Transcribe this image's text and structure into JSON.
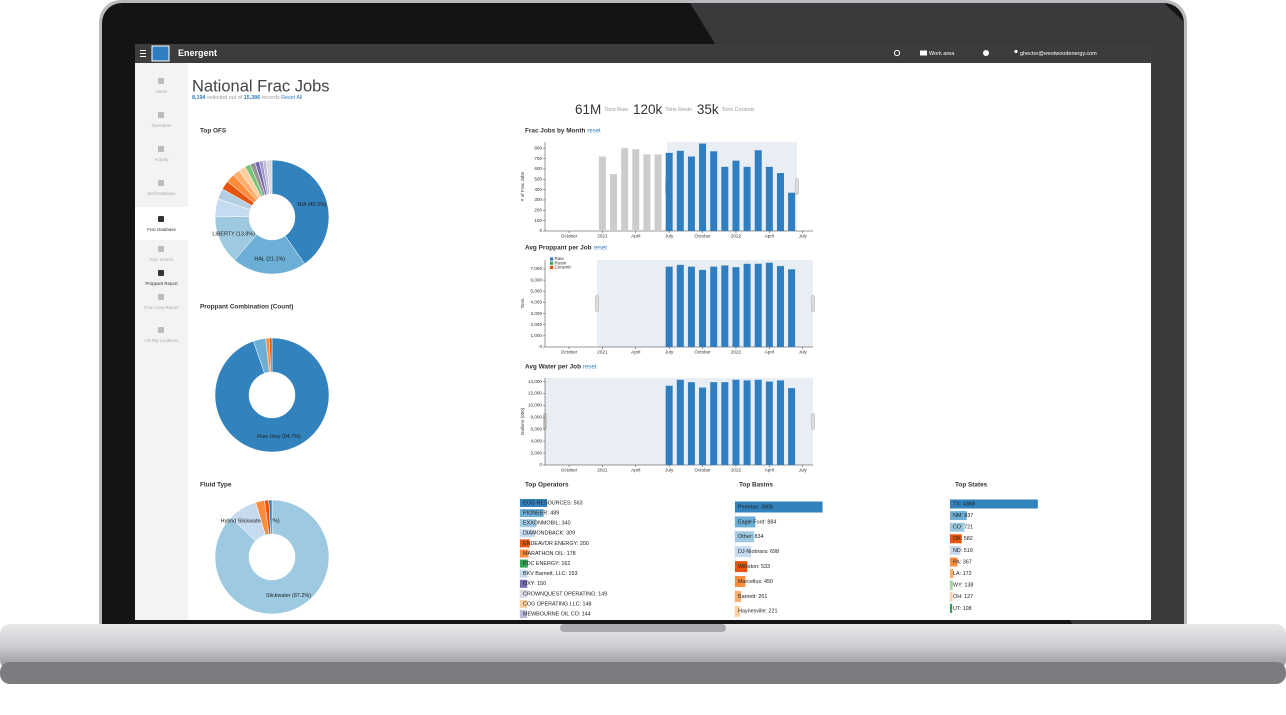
{
  "top_bar": {
    "brand": "Energent",
    "work_area": "Work area",
    "user": "ghector@westwoodenergy.com"
  },
  "nav": [
    "Home",
    "Operators",
    "Activity",
    "Well Database",
    "Frac Database",
    "Frac Search",
    "Proppant Report",
    "Frac Crew Report",
    "US Rig Locations"
  ],
  "header": {
    "title": "National Frac Jobs",
    "selected": "8,194",
    "selected_text": "selected out of",
    "total": "15,386",
    "records_text": "records",
    "reset_all": "Reset All"
  },
  "kpis": [
    {
      "value": "61M",
      "label": "Tons Raw"
    },
    {
      "value": "120k",
      "label": "Tons Resin"
    },
    {
      "value": "35k",
      "label": "Tons Ceramic"
    }
  ],
  "charts": [
    {
      "type": "pie",
      "title": "Top OFS",
      "values": [
        40.3,
        21.1,
        13.8,
        5,
        3,
        2.5,
        2.5,
        2,
        2,
        1.5,
        1.5,
        1.2,
        1,
        1,
        1.6
      ],
      "colors": [
        "#3182bd",
        "#6baed6",
        "#9ecae1",
        "#c6dbef",
        "#b3cde3",
        "#e6550d",
        "#fd8d3c",
        "#fdae6b",
        "#fdd0a2",
        "#74c476",
        "#969696",
        "#756bb1",
        "#9e9ac8",
        "#bcbddc",
        "#d9d9d9"
      ],
      "value_labels": [
        "N/A (40.3%)",
        "HAL (21.1%)",
        "LIBERTY (13.8%)",
        null,
        null,
        null,
        null,
        null,
        null,
        null,
        null,
        null,
        null,
        null,
        null
      ]
    },
    {
      "type": "pie",
      "title": "Proppant Combination (Count)",
      "values": [
        94.7,
        3.5,
        1.0,
        0.8
      ],
      "colors": [
        "#3182bd",
        "#6baed6",
        "#fd8d3c",
        "#e6550d"
      ],
      "value_labels": [
        "Raw Only (94.7%)",
        null,
        null,
        null
      ]
    },
    {
      "type": "pie",
      "title": "Fluid Type",
      "values": [
        87.2,
        8.2,
        2.5,
        1.2,
        0.9
      ],
      "colors": [
        "#9ecae1",
        "#c6dbef",
        "#fd8d3c",
        "#e6550d",
        "#3182bd"
      ],
      "value_labels": [
        "Slickwater (87.2%)",
        "Hybrid Slickwater (8.2%)",
        null,
        null,
        null
      ]
    },
    {
      "type": "bar",
      "title": "Frac Jobs by Month",
      "reset": "reset",
      "ylabel": "# of Frac Jobs",
      "categories": [
        "October",
        null,
        null,
        "2021",
        null,
        null,
        "April",
        null,
        null,
        "July",
        null,
        null,
        "October",
        null,
        null,
        "2022",
        null,
        null,
        "April",
        null,
        null,
        "July"
      ],
      "values": [
        null,
        null,
        null,
        720,
        550,
        800,
        790,
        740,
        740,
        755,
        775,
        720,
        845,
        770,
        620,
        680,
        620,
        780,
        620,
        560,
        370,
        null
      ],
      "colors": [
        null,
        null,
        null,
        "#cccccc",
        "#cccccc",
        "#cccccc",
        "#cccccc",
        "#cccccc",
        "#cccccc",
        "#2f7ec1",
        "#2f7ec1",
        "#2f7ec1",
        "#2f7ec1",
        "#2f7ec1",
        "#2f7ec1",
        "#2f7ec1",
        "#2f7ec1",
        "#2f7ec1",
        "#2f7ec1",
        "#2f7ec1",
        "#2f7ec1",
        null
      ],
      "ylim": [
        0,
        860
      ],
      "yticks": [
        0,
        100,
        200,
        300,
        400,
        500,
        600,
        700,
        800
      ]
    },
    {
      "type": "bar",
      "title": "Avg Proppant per Job",
      "reset": "reset",
      "ylabel": "Tons",
      "stacked": true,
      "categories": [
        "October",
        null,
        null,
        "2021",
        null,
        null,
        "April",
        null,
        null,
        "July",
        null,
        null,
        "October",
        null,
        null,
        "2022",
        null,
        null,
        "April",
        null,
        null,
        "July"
      ],
      "series": [
        {
          "name": "Raw",
          "color": "#2f7ec1",
          "values": [
            null,
            null,
            null,
            null,
            null,
            null,
            null,
            null,
            null,
            7200,
            7350,
            7200,
            6900,
            7200,
            7300,
            7150,
            7450,
            7450,
            7550,
            7250,
            6950,
            null
          ]
        },
        {
          "name": "Resin",
          "color": "#31a354",
          "values": [
            null,
            null,
            null,
            null,
            null,
            null,
            null,
            null,
            null,
            14,
            14,
            14,
            14,
            14,
            14,
            14,
            14,
            14,
            14,
            14,
            14,
            null
          ]
        },
        {
          "name": "Ceramic",
          "color": "#e6550d",
          "values": [
            null,
            null,
            null,
            null,
            null,
            null,
            null,
            null,
            null,
            4,
            4,
            4,
            4,
            4,
            4,
            4,
            4,
            4,
            4,
            4,
            4,
            null
          ]
        }
      ],
      "ylim": [
        0,
        7800
      ],
      "yticks": [
        0,
        {
          "value": 1000,
          "label": "1,000"
        },
        {
          "value": 2000,
          "label": "2,000"
        },
        {
          "value": 3000,
          "label": "3,000"
        },
        {
          "value": 4000,
          "label": "4,000"
        },
        {
          "value": 5000,
          "label": "5,000"
        },
        {
          "value": 6000,
          "label": "6,000"
        },
        {
          "value": 7000,
          "label": "7,000"
        }
      ]
    },
    {
      "type": "bar",
      "title": "Avg Water per Job",
      "reset": "reset",
      "ylabel": "Gallons (000)",
      "color": "#2f7ec1",
      "categories": [
        "October",
        null,
        null,
        "2021",
        null,
        null,
        "April",
        null,
        null,
        "July",
        null,
        null,
        "October",
        null,
        null,
        "2022",
        null,
        null,
        "April",
        null,
        null,
        "July"
      ],
      "values": [
        null,
        null,
        null,
        null,
        null,
        null,
        null,
        null,
        null,
        13300,
        14300,
        13900,
        13000,
        13900,
        13900,
        14300,
        14200,
        14300,
        14000,
        14200,
        12900,
        null
      ],
      "ylim": [
        0,
        14600
      ],
      "yticks": [
        0,
        {
          "value": 2000,
          "label": "2,000"
        },
        {
          "value": 4000,
          "label": "4,000"
        },
        {
          "value": 6000,
          "label": "6,000"
        },
        {
          "value": 8000,
          "label": "8,000"
        },
        {
          "value": 10000,
          "label": "10,000"
        },
        {
          "value": 12000,
          "label": "12,000"
        },
        {
          "value": 14000,
          "label": "14,000"
        }
      ]
    },
    {
      "type": "hbar",
      "title": "Top Operators",
      "categories": [
        "EOG RESOURCES",
        "PIONEER",
        "EXXONMOBIL",
        "DIAMONDBACK",
        "ENDEAVOR ENERGY",
        "MARATHON OIL",
        "PDC ENERGY",
        "BKV Barnett, LLC",
        "OXY",
        "CROWNQUEST OPERATING",
        "COG OPERATING LLC",
        "MEWBOURNE OIL CO"
      ],
      "values": [
        563,
        489,
        340,
        309,
        200,
        178,
        162,
        153,
        150,
        149,
        148,
        144
      ],
      "value_labels": [
        "EOG RESOURCES: 563",
        "PIONEER: 489",
        "EXXONMOBIL: 340",
        "DIAMONDBACK: 309",
        "ENDEAVOR ENERGY: 200",
        "MARATHON OIL: 178",
        "PDC ENERGY: 162",
        "BKV Barnett, LLC: 153",
        "OXY: 150",
        "CROWNQUEST OPERATING: 149",
        "COG OPERATING LLC: 148",
        "MEWBOURNE OIL CO: 144"
      ],
      "colors": [
        "#3182bd",
        "#6baed6",
        "#9ecae1",
        "#c6dbef",
        "#e6550d",
        "#fd8d3c",
        "#31a354",
        "#c6dbef",
        "#756bb1",
        "#dadaeb",
        "#fdd0a2",
        "#bcbddc"
      ],
      "xlim": [
        0,
        1700
      ]
    },
    {
      "type": "hbar",
      "title": "Top Basins",
      "categories": [
        "Permian",
        "Eagle Ford",
        "Other",
        "DJ-Niobrara",
        "Williston",
        "Marcellus",
        "Barnett",
        "Haynesville"
      ],
      "values": [
        3808,
        884,
        834,
        698,
        533,
        450,
        261,
        221
      ],
      "value_labels": [
        "Permian: 3808",
        "Eagle Ford: 884",
        "Other: 834",
        "DJ-Niobrara: 698",
        "Williston: 533",
        "Marcellus: 450",
        "Barnett: 261",
        "Haynesville: 221"
      ],
      "colors": [
        "#3182bd",
        "#6baed6",
        "#9ecae1",
        "#c6dbef",
        "#e6550d",
        "#fd8d3c",
        "#fdae6b",
        "#fdd0a2"
      ],
      "xlim": [
        0,
        4000
      ]
    },
    {
      "type": "hbar",
      "title": "Top States",
      "categories": [
        "TX",
        "NM",
        "CO",
        "OK",
        "ND",
        "PA",
        "LA",
        "WY",
        "OH",
        "UT"
      ],
      "values": [
        4368,
        837,
        721,
        582,
        519,
        367,
        172,
        138,
        127,
        108
      ],
      "value_labels": [
        "TX: 4368",
        "NM: 837",
        "CO: 721",
        "OK: 582",
        "ND: 519",
        "PA: 367",
        "LA: 172",
        "WY: 138",
        "OH: 127",
        "UT: 108"
      ],
      "colors": [
        "#3182bd",
        "#6baed6",
        "#9ecae1",
        "#e6550d",
        "#c6dbef",
        "#fd8d3c",
        "#fdae6b",
        "#a1d99b",
        "#fdd0a2",
        "#31a354"
      ],
      "xlim": [
        0,
        4500
      ]
    }
  ]
}
